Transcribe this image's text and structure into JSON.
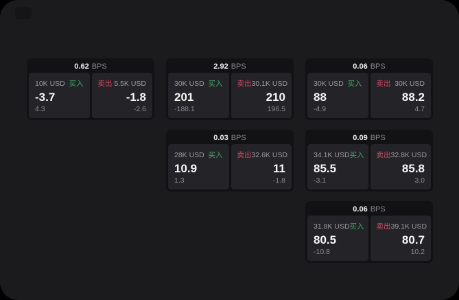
{
  "labels": {
    "bps_unit": "BPS",
    "buy": "买入",
    "sell": "卖出"
  },
  "colors": {
    "background": "#000000",
    "panel_bg": "#1b1b1d",
    "card_bg": "#121214",
    "pane_bg": "#242428",
    "buy_green": "#43a567",
    "sell_red": "#cf4a63",
    "value_white": "#f7f7f8",
    "muted_gray": "#9a9aa0"
  },
  "cards": [
    {
      "bps": "0.62",
      "buy": {
        "notional": "10K USD",
        "price": "-3.7",
        "delta": "4.3"
      },
      "sell": {
        "notional": "5.5K USD",
        "price": "-1.8",
        "delta": "-2.6"
      }
    },
    {
      "bps": "2.92",
      "buy": {
        "notional": "30K USD",
        "price": "201",
        "delta": "-188.1"
      },
      "sell": {
        "notional": "30.1K USD",
        "price": "210",
        "delta": "196.5"
      }
    },
    {
      "bps": "0.06",
      "buy": {
        "notional": "30K USD",
        "price": "88",
        "delta": "-4.9"
      },
      "sell": {
        "notional": "30K USD",
        "price": "88.2",
        "delta": "4.7"
      }
    },
    {
      "bps": "0.03",
      "buy": {
        "notional": "28K USD",
        "price": "10.9",
        "delta": "1.3"
      },
      "sell": {
        "notional": "32.6K USD",
        "price": "11",
        "delta": "-1.8"
      }
    },
    {
      "bps": "0.09",
      "buy": {
        "notional": "34.1K USD",
        "price": "85.5",
        "delta": "-3.1"
      },
      "sell": {
        "notional": "32.8K USD",
        "price": "85.8",
        "delta": "3.0"
      }
    },
    {
      "bps": "0.06",
      "buy": {
        "notional": "31.8K USD",
        "price": "80.5",
        "delta": "-10.8"
      },
      "sell": {
        "notional": "39.1K USD",
        "price": "80.7",
        "delta": "10.2"
      }
    }
  ]
}
